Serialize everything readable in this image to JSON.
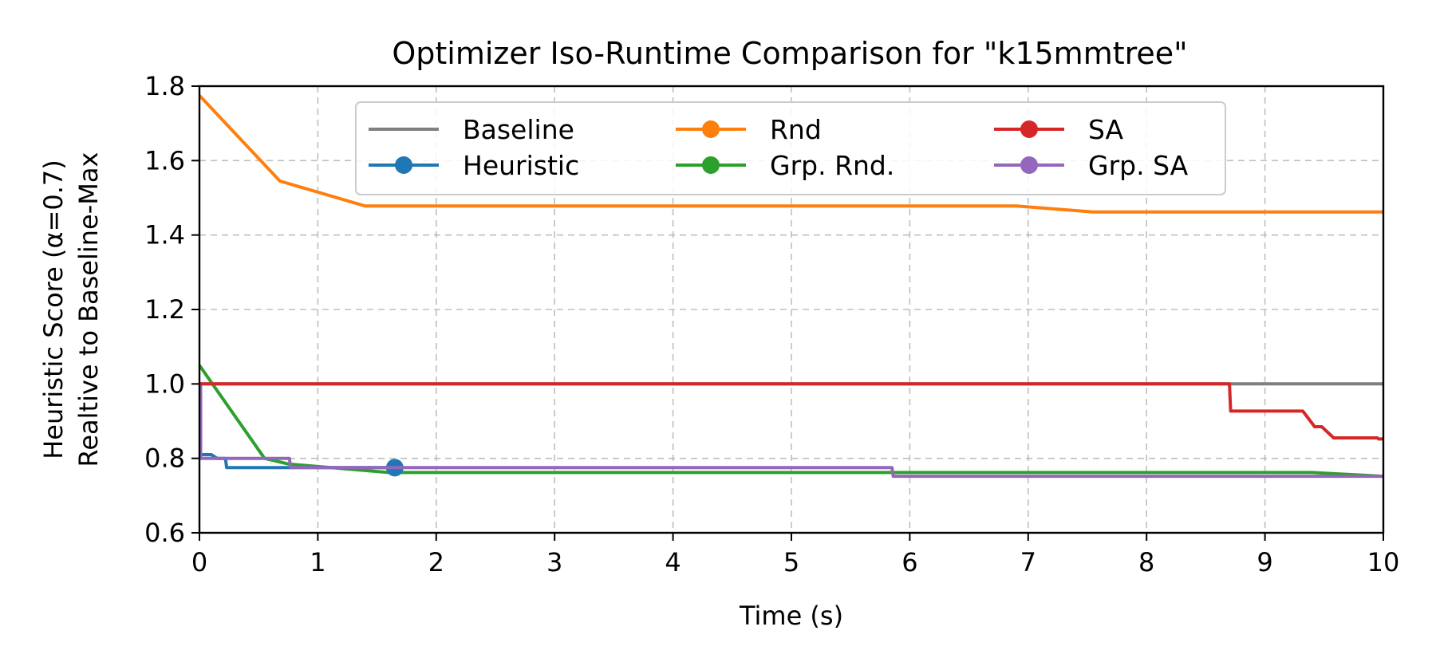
{
  "chart_data": {
    "type": "line",
    "title": "Optimizer Iso-Runtime Comparison for \"k15mmtree\"",
    "xlabel": "Time (s)",
    "ylabel_line1": "Heuristic Score (α=0.7)",
    "ylabel_line2": "Realtive to Baseline-Max",
    "xlim": [
      0,
      10
    ],
    "ylim": [
      0.6,
      1.8
    ],
    "xticks": [
      0,
      1,
      2,
      3,
      4,
      5,
      6,
      7,
      8,
      9,
      10
    ],
    "xtick_labels": [
      "0",
      "1",
      "2",
      "3",
      "4",
      "5",
      "6",
      "7",
      "8",
      "9",
      "10"
    ],
    "yticks": [
      0.6,
      0.8,
      1.0,
      1.2,
      1.4,
      1.6,
      1.8
    ],
    "ytick_labels": [
      "0.6",
      "0.8",
      "1.0",
      "1.2",
      "1.4",
      "1.6",
      "1.8"
    ],
    "grid": true,
    "legend_placement": "upper center",
    "legend_columns": 3,
    "series": [
      {
        "name": "Baseline",
        "color": "#7f7f7f",
        "marker": "none",
        "points": [
          [
            0,
            1.0
          ],
          [
            10,
            1.0
          ]
        ]
      },
      {
        "name": "Heuristic",
        "color": "#1f77b4",
        "marker": "circle",
        "step": true,
        "points": [
          [
            0,
            1.0
          ],
          [
            0.01,
            1.0
          ],
          [
            0.01,
            0.81
          ],
          [
            0.1,
            0.81
          ],
          [
            0.15,
            0.8
          ],
          [
            0.22,
            0.8
          ],
          [
            0.23,
            0.775
          ],
          [
            1.65,
            0.775
          ]
        ],
        "marker_points": [
          [
            1.65,
            0.775
          ]
        ]
      },
      {
        "name": "Rnd",
        "color": "#ff7f0e",
        "marker": "circle",
        "points": [
          [
            0,
            1.775
          ],
          [
            0.68,
            1.545
          ],
          [
            1.4,
            1.478
          ],
          [
            6.9,
            1.478
          ],
          [
            7.55,
            1.462
          ],
          [
            10,
            1.462
          ]
        ],
        "marker_points": []
      },
      {
        "name": "Grp. Rnd.",
        "color": "#2ca02c",
        "marker": "circle",
        "points": [
          [
            0,
            1.05
          ],
          [
            0.55,
            0.8
          ],
          [
            0.75,
            0.785
          ],
          [
            1.6,
            0.762
          ],
          [
            9.4,
            0.762
          ],
          [
            10,
            0.752
          ]
        ],
        "marker_points": []
      },
      {
        "name": "SA",
        "color": "#d62728",
        "marker": "circle",
        "points": [
          [
            0,
            1.0
          ],
          [
            8.7,
            1.0
          ],
          [
            8.71,
            0.927
          ],
          [
            9.32,
            0.927
          ],
          [
            9.42,
            0.885
          ],
          [
            9.48,
            0.885
          ],
          [
            9.58,
            0.855
          ],
          [
            9.95,
            0.855
          ],
          [
            9.96,
            0.852
          ],
          [
            10,
            0.852
          ]
        ],
        "marker_points": []
      },
      {
        "name": "Grp. SA",
        "color": "#9467bd",
        "marker": "circle",
        "points": [
          [
            0,
            1.0
          ],
          [
            0.01,
            1.0
          ],
          [
            0.01,
            0.8
          ],
          [
            0.76,
            0.8
          ],
          [
            0.77,
            0.775
          ],
          [
            5.85,
            0.775
          ],
          [
            5.86,
            0.752
          ],
          [
            10,
            0.752
          ]
        ],
        "marker_points": []
      }
    ]
  }
}
